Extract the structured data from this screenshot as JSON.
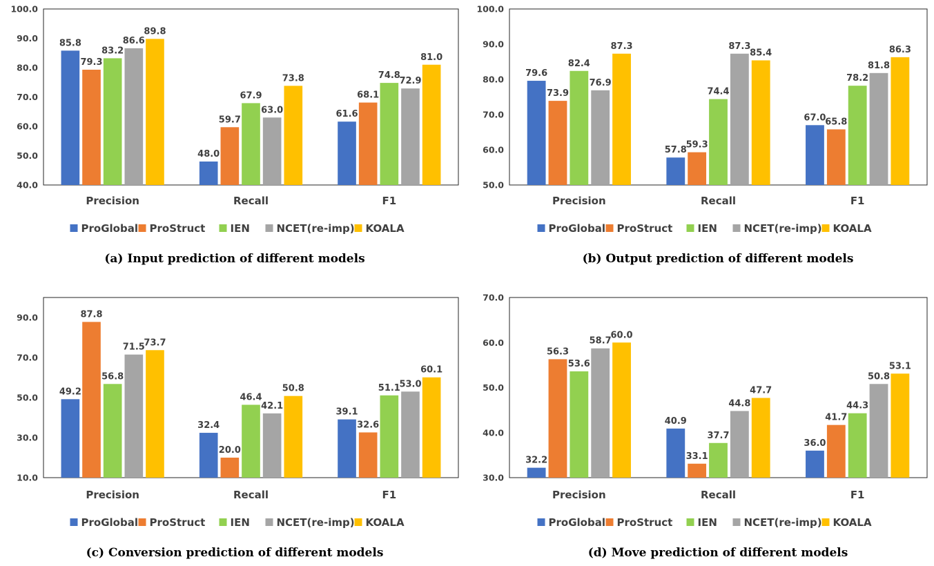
{
  "chart_data": [
    {
      "type": "bar",
      "title": "(a) Input prediction of different models",
      "categories": [
        "Precision",
        "Recall",
        "F1"
      ],
      "ylim": [
        40,
        100
      ],
      "yticks": [
        "40.0",
        "50.0",
        "60.0",
        "70.0",
        "80.0",
        "90.0",
        "100.0"
      ],
      "ytick_values": [
        40,
        50,
        60,
        70,
        80,
        90,
        100
      ],
      "legend_position": "bottom",
      "grid": false,
      "series": [
        {
          "name": "ProGlobal",
          "color": "#4472C4",
          "values": [
            85.8,
            48.0,
            61.6
          ],
          "labels": [
            "85.8",
            "48.0",
            "61.6"
          ]
        },
        {
          "name": "ProStruct",
          "color": "#ED7D31",
          "values": [
            79.3,
            59.7,
            68.1
          ],
          "labels": [
            "79.3",
            "59.7",
            "68.1"
          ]
        },
        {
          "name": "IEN",
          "color": "#92D050",
          "values": [
            83.2,
            67.9,
            74.8
          ],
          "labels": [
            "83.2",
            "67.9",
            "74.8"
          ]
        },
        {
          "name": "NCET(re-imp)",
          "color": "#A5A5A5",
          "values": [
            86.6,
            63.0,
            72.9
          ],
          "labels": [
            "86.6",
            "63.0",
            "72.9"
          ]
        },
        {
          "name": "KOALA",
          "color": "#FFC000",
          "values": [
            89.8,
            73.8,
            81.0
          ],
          "labels": [
            "89.8",
            "73.8",
            "81.0"
          ]
        }
      ]
    },
    {
      "type": "bar",
      "title": "(b) Output prediction of different models",
      "categories": [
        "Precision",
        "Recall",
        "F1"
      ],
      "ylim": [
        50,
        100
      ],
      "yticks": [
        "50.0",
        "60.0",
        "70.0",
        "80.0",
        "90.0",
        "100.0"
      ],
      "ytick_values": [
        50,
        60,
        70,
        80,
        90,
        100
      ],
      "legend_position": "bottom",
      "grid": false,
      "series": [
        {
          "name": "ProGlobal",
          "color": "#4472C4",
          "values": [
            79.6,
            57.8,
            67.0
          ],
          "labels": [
            "79.6",
            "57.8",
            "67.0"
          ]
        },
        {
          "name": "ProStruct",
          "color": "#ED7D31",
          "values": [
            73.9,
            59.3,
            65.8
          ],
          "labels": [
            "73.9",
            "59.3",
            "65.8"
          ]
        },
        {
          "name": "IEN",
          "color": "#92D050",
          "values": [
            82.4,
            74.4,
            78.2
          ],
          "labels": [
            "82.4",
            "74.4",
            "78.2"
          ]
        },
        {
          "name": "NCET(re-imp)",
          "color": "#A5A5A5",
          "values": [
            76.9,
            87.3,
            81.8
          ],
          "labels": [
            "76.9",
            "87.3",
            "81.8"
          ]
        },
        {
          "name": "KOALA",
          "color": "#FFC000",
          "values": [
            87.3,
            85.4,
            86.3
          ],
          "labels": [
            "87.3",
            "85.4",
            "86.3"
          ]
        }
      ]
    },
    {
      "type": "bar",
      "title": "(c) Conversion prediction of different models",
      "categories": [
        "Precision",
        "Recall",
        "F1"
      ],
      "ylim": [
        10,
        100
      ],
      "yticks": [
        "10.0",
        "30.0",
        "50.0",
        "70.0",
        "90.0"
      ],
      "ytick_values": [
        10,
        30,
        50,
        70,
        90
      ],
      "legend_position": "bottom",
      "grid": false,
      "series": [
        {
          "name": "ProGlobal",
          "color": "#4472C4",
          "values": [
            49.2,
            32.4,
            39.1
          ],
          "labels": [
            "49.2",
            "32.4",
            "39.1"
          ]
        },
        {
          "name": "ProStruct",
          "color": "#ED7D31",
          "values": [
            87.8,
            20.0,
            32.6
          ],
          "labels": [
            "87.8",
            "20.0",
            "32.6"
          ]
        },
        {
          "name": "IEN",
          "color": "#92D050",
          "values": [
            56.8,
            46.4,
            51.1
          ],
          "labels": [
            "56.8",
            "46.4",
            "51.1"
          ]
        },
        {
          "name": "NCET(re-imp)",
          "color": "#A5A5A5",
          "values": [
            71.5,
            42.1,
            53.0
          ],
          "labels": [
            "71.5",
            "42.1",
            "53.0"
          ]
        },
        {
          "name": "KOALA",
          "color": "#FFC000",
          "values": [
            73.7,
            50.8,
            60.1
          ],
          "labels": [
            "73.7",
            "50.8",
            "60.1"
          ]
        }
      ]
    },
    {
      "type": "bar",
      "title": "(d) Move prediction of different models",
      "categories": [
        "Precision",
        "Recall",
        "F1"
      ],
      "ylim": [
        30,
        70
      ],
      "yticks": [
        "30.0",
        "40.0",
        "50.0",
        "60.0",
        "70.0"
      ],
      "ytick_values": [
        30,
        40,
        50,
        60,
        70
      ],
      "legend_position": "bottom",
      "grid": false,
      "series": [
        {
          "name": "ProGlobal",
          "color": "#4472C4",
          "values": [
            32.2,
            40.9,
            36.0
          ],
          "labels": [
            "32.2",
            "40.9",
            "36.0"
          ]
        },
        {
          "name": "ProStruct",
          "color": "#ED7D31",
          "values": [
            56.3,
            33.1,
            41.7
          ],
          "labels": [
            "56.3",
            "33.1",
            "41.7"
          ]
        },
        {
          "name": "IEN",
          "color": "#92D050",
          "values": [
            53.6,
            37.7,
            44.3
          ],
          "labels": [
            "53.6",
            "37.7",
            "44.3"
          ]
        },
        {
          "name": "NCET(re-imp)",
          "color": "#A5A5A5",
          "values": [
            58.7,
            44.8,
            50.8
          ],
          "labels": [
            "58.7",
            "44.8",
            "50.8"
          ]
        },
        {
          "name": "KOALA",
          "color": "#FFC000",
          "values": [
            60.0,
            47.7,
            53.1
          ],
          "labels": [
            "60.0",
            "47.7",
            "53.1"
          ]
        }
      ]
    }
  ]
}
